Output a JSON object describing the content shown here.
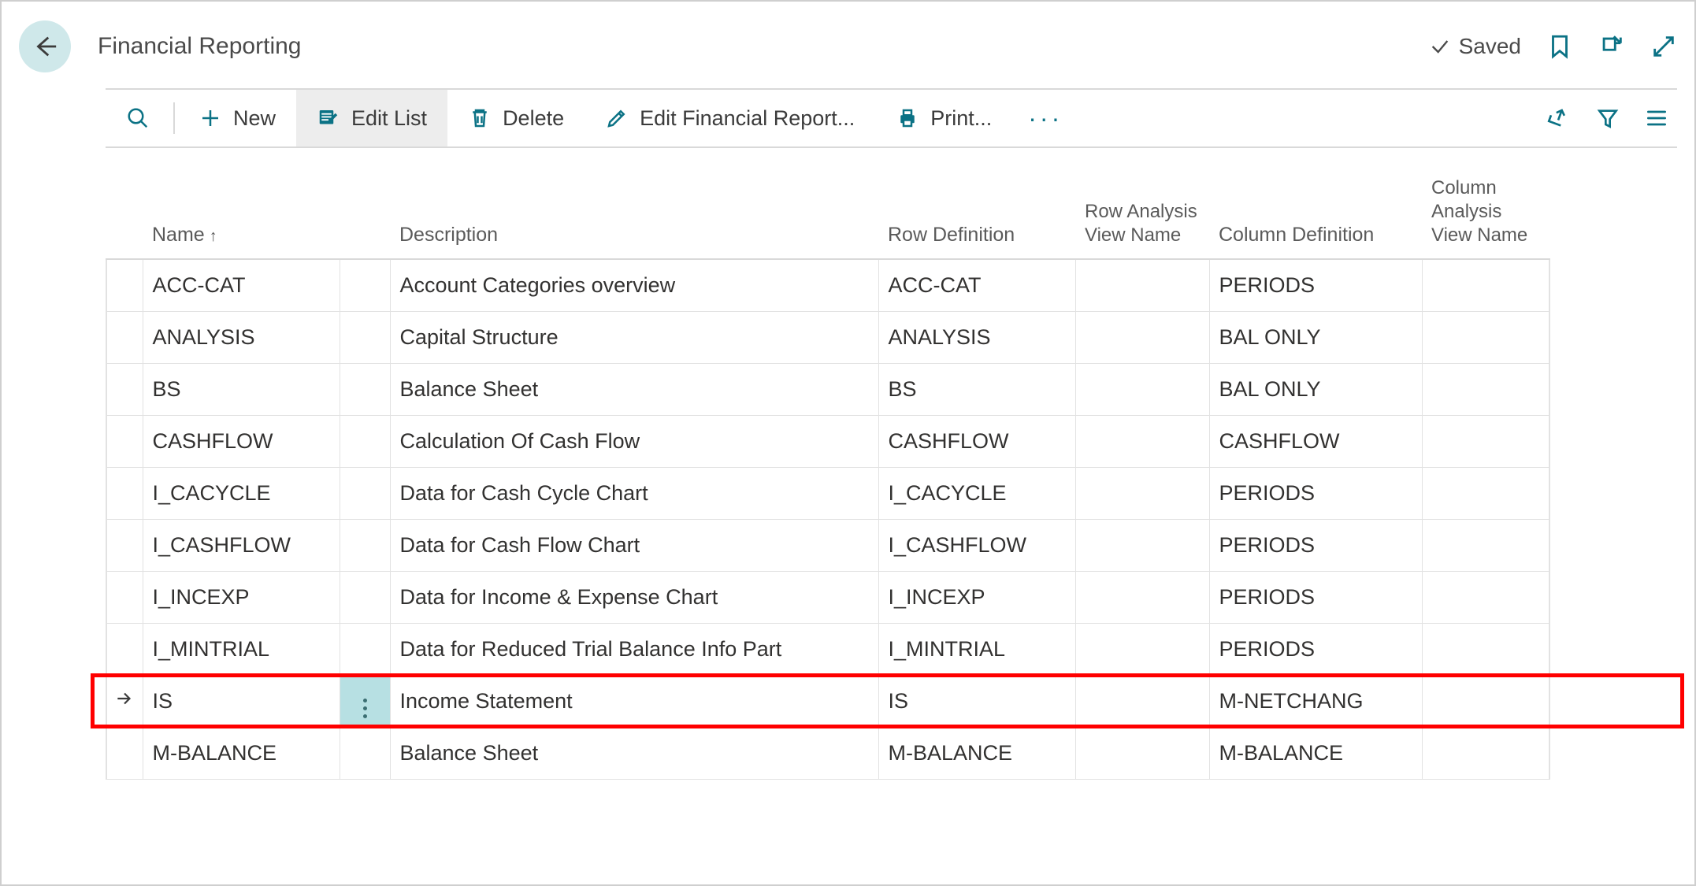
{
  "header": {
    "title": "Financial Reporting",
    "saved_label": "Saved"
  },
  "toolbar": {
    "new_label": "New",
    "edit_list_label": "Edit List",
    "delete_label": "Delete",
    "edit_report_label": "Edit Financial Report...",
    "print_label": "Print..."
  },
  "table": {
    "columns": {
      "name": "Name",
      "sort_indicator": "↑",
      "description": "Description",
      "row_definition": "Row Definition",
      "row_analysis": "Row Analysis View Name",
      "column_definition": "Column Definition",
      "column_analysis": "Column Analysis View Name"
    },
    "rows": [
      {
        "name": "ACC-CAT",
        "description": "Account Categories overview",
        "row_def": "ACC-CAT",
        "row_av": "",
        "col_def": "PERIODS",
        "col_av": "",
        "selected": false
      },
      {
        "name": "ANALYSIS",
        "description": "Capital Structure",
        "row_def": "ANALYSIS",
        "row_av": "",
        "col_def": "BAL ONLY",
        "col_av": "",
        "selected": false
      },
      {
        "name": "BS",
        "description": "Balance Sheet",
        "row_def": "BS",
        "row_av": "",
        "col_def": "BAL ONLY",
        "col_av": "",
        "selected": false
      },
      {
        "name": "CASHFLOW",
        "description": "Calculation Of Cash Flow",
        "row_def": "CASHFLOW",
        "row_av": "",
        "col_def": "CASHFLOW",
        "col_av": "",
        "selected": false
      },
      {
        "name": "I_CACYCLE",
        "description": "Data for Cash Cycle Chart",
        "row_def": "I_CACYCLE",
        "row_av": "",
        "col_def": "PERIODS",
        "col_av": "",
        "selected": false
      },
      {
        "name": "I_CASHFLOW",
        "description": "Data for Cash Flow Chart",
        "row_def": "I_CASHFLOW",
        "row_av": "",
        "col_def": "PERIODS",
        "col_av": "",
        "selected": false
      },
      {
        "name": "I_INCEXP",
        "description": "Data for Income & Expense Chart",
        "row_def": "I_INCEXP",
        "row_av": "",
        "col_def": "PERIODS",
        "col_av": "",
        "selected": false
      },
      {
        "name": "I_MINTRIAL",
        "description": "Data for Reduced Trial Balance Info Part",
        "row_def": "I_MINTRIAL",
        "row_av": "",
        "col_def": "PERIODS",
        "col_av": "",
        "selected": false
      },
      {
        "name": "IS",
        "description": "Income Statement",
        "row_def": "IS",
        "row_av": "",
        "col_def": "M-NETCHANG",
        "col_av": "",
        "selected": true
      },
      {
        "name": "M-BALANCE",
        "description": "Balance Sheet",
        "row_def": "M-BALANCE",
        "row_av": "",
        "col_def": "M-BALANCE",
        "col_av": "",
        "selected": false
      }
    ],
    "highlight_color": "#ff0000",
    "selected_menu_bg": "#b7e0e3"
  },
  "colors": {
    "accent": "#0b7285",
    "back_button_bg": "#cfe8ea",
    "border": "#d9d9d9",
    "cell_border": "#e2e2e2",
    "text": "#323130",
    "muted_text": "#5a5a5a"
  }
}
